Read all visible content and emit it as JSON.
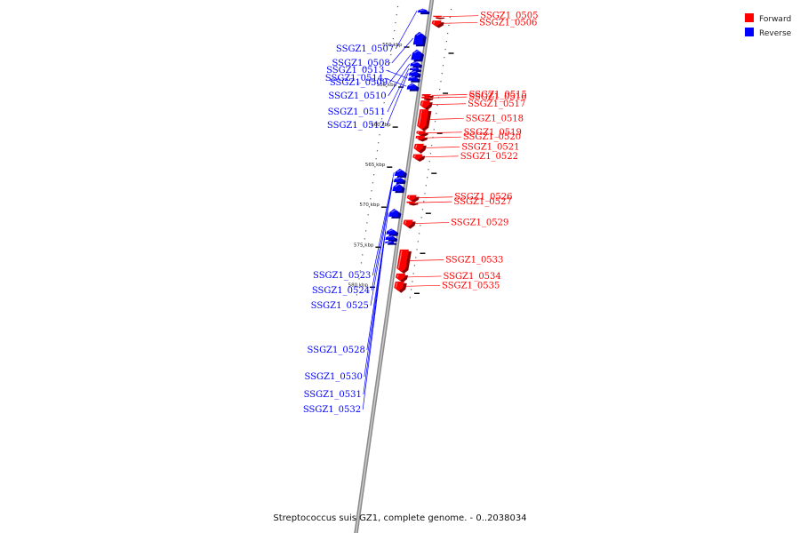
{
  "caption": "Streptococcus suis GZ1, complete genome. - 0..2038034",
  "legend": {
    "forward": {
      "label": "Forward",
      "color": "#ff0000"
    },
    "reverse": {
      "label": "Reverse",
      "color": "#0000ff"
    }
  },
  "axis": {
    "ticks": [
      {
        "label": "550 kbp",
        "value": 550
      },
      {
        "label": "555 kbp",
        "value": 555
      },
      {
        "label": "560 kbp",
        "value": 560
      },
      {
        "label": "565 kbp",
        "value": 565
      },
      {
        "label": "570 kbp",
        "value": 570
      },
      {
        "label": "575 kbp",
        "value": 575
      },
      {
        "label": "580 kbp",
        "value": 580
      }
    ]
  },
  "genes": [
    {
      "name": "SSGZ1_0505",
      "strand": "forward",
      "start": 546.2,
      "end": 546.4
    },
    {
      "name": "SSGZ1_0506",
      "strand": "forward",
      "start": 546.8,
      "end": 547.5
    },
    {
      "name": "SSGZ1_0507",
      "strand": "reverse",
      "start": 545.3,
      "end": 545.8
    },
    {
      "name": "SSGZ1_0508",
      "strand": "reverse",
      "start": 548.2,
      "end": 549.8
    },
    {
      "name": "SSGZ1_0509",
      "strand": "reverse",
      "start": 550.4,
      "end": 551.7
    },
    {
      "name": "SSGZ1_0510",
      "strand": "reverse",
      "start": 551.9,
      "end": 552.5
    },
    {
      "name": "SSGZ1_0511",
      "strand": "reverse",
      "start": 552.6,
      "end": 553.0
    },
    {
      "name": "SSGZ1_0512",
      "strand": "reverse",
      "start": 553.0,
      "end": 553.7
    },
    {
      "name": "SSGZ1_0513",
      "strand": "reverse",
      "start": 553.7,
      "end": 554.3
    },
    {
      "name": "SSGZ1_0514",
      "strand": "reverse",
      "start": 554.6,
      "end": 555.4
    },
    {
      "name": "SSGZ1_0515",
      "strand": "forward",
      "start": 556.0,
      "end": 556.3
    },
    {
      "name": "SSGZ1_0516",
      "strand": "forward",
      "start": 556.3,
      "end": 556.6
    },
    {
      "name": "SSGZ1_0517",
      "strand": "forward",
      "start": 556.8,
      "end": 557.8
    },
    {
      "name": "SSGZ1_0518",
      "strand": "forward",
      "start": 557.9,
      "end": 560.4
    },
    {
      "name": "SSGZ1_0519",
      "strand": "forward",
      "start": 560.6,
      "end": 561.1
    },
    {
      "name": "SSGZ1_0520",
      "strand": "forward",
      "start": 561.2,
      "end": 561.7
    },
    {
      "name": "SSGZ1_0521",
      "strand": "forward",
      "start": 562.2,
      "end": 563.2
    },
    {
      "name": "SSGZ1_0522",
      "strand": "forward",
      "start": 563.5,
      "end": 564.2
    },
    {
      "name": "SSGZ1_0523",
      "strand": "reverse",
      "start": 565.3,
      "end": 566.2
    },
    {
      "name": "SSGZ1_0524",
      "strand": "reverse",
      "start": 566.3,
      "end": 567.0
    },
    {
      "name": "SSGZ1_0525",
      "strand": "reverse",
      "start": 567.1,
      "end": 568.1
    },
    {
      "name": "SSGZ1_0526",
      "strand": "forward",
      "start": 568.6,
      "end": 569.3
    },
    {
      "name": "SSGZ1_0527",
      "strand": "forward",
      "start": 569.4,
      "end": 569.7
    },
    {
      "name": "SSGZ1_0528",
      "strand": "reverse",
      "start": 570.3,
      "end": 571.3
    },
    {
      "name": "SSGZ1_0529",
      "strand": "forward",
      "start": 571.7,
      "end": 572.6
    },
    {
      "name": "SSGZ1_0530",
      "strand": "reverse",
      "start": 572.8,
      "end": 573.5
    },
    {
      "name": "SSGZ1_0531",
      "strand": "reverse",
      "start": 573.6,
      "end": 574.2
    },
    {
      "name": "SSGZ1_0532",
      "strand": "reverse",
      "start": 574.3,
      "end": 574.6
    },
    {
      "name": "SSGZ1_0533",
      "strand": "forward",
      "start": 575.4,
      "end": 578.2
    },
    {
      "name": "SSGZ1_0534",
      "strand": "forward",
      "start": 578.4,
      "end": 579.3
    },
    {
      "name": "SSGZ1_0535",
      "strand": "forward",
      "start": 579.4,
      "end": 580.6
    }
  ]
}
